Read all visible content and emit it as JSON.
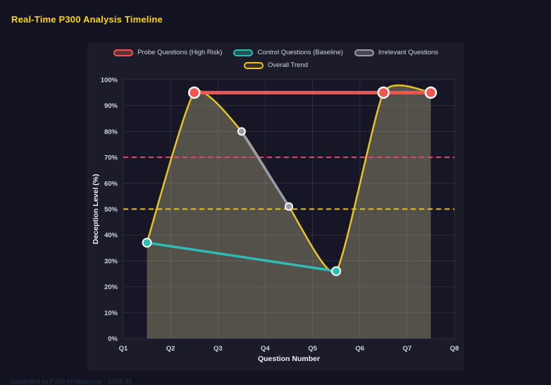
{
  "page": {
    "title": "Real-Time P300 Analysis Timeline",
    "footer": "Generated by P300 Professional - 10:05:45"
  },
  "theme": {
    "page_bg": "#121220",
    "panel_bg": "#1b1b2a",
    "plot_bg": "#161626",
    "grid": "rgba(255,255,255,0.09)",
    "tick_text": "#ced3de",
    "axis_title_text": "#eef0f5",
    "legend_text": "#d2d5dd",
    "title_text": "#ffd700",
    "footer_text": "#2e3444",
    "point_border": "#ffffff"
  },
  "chart_data": {
    "type": "line",
    "title": "Real-Time P300 Analysis Timeline",
    "xlabel": "Question Number",
    "ylabel": "Deception Level (%)",
    "x_ticks": [
      "Q1",
      "Q2",
      "Q3",
      "Q4",
      "Q5",
      "Q6",
      "Q7",
      "Q8"
    ],
    "x_range": [
      1,
      8
    ],
    "y_ticks": [
      "0%",
      "10%",
      "20%",
      "30%",
      "40%",
      "50%",
      "60%",
      "70%",
      "80%",
      "90%",
      "100%"
    ],
    "ylim": [
      0,
      100
    ],
    "y_tick_step": 10,
    "grid": true,
    "legend_position": "top",
    "series": [
      {
        "name": "Probe Questions (High Risk)",
        "color": "#f2554e",
        "swatch_fill": "rgba(242,85,78,0.35)",
        "line_width": 5,
        "point_radius": 7.5,
        "point_stroke": 2.5,
        "smooth": false,
        "fill": false,
        "points": [
          {
            "x": 2.5,
            "y": 95
          },
          {
            "x": 6.5,
            "y": 95
          },
          {
            "x": 7.5,
            "y": 95
          }
        ]
      },
      {
        "name": "Control Questions (Baseline)",
        "color": "#2fbdb3",
        "swatch_fill": "rgba(47,189,179,0.35)",
        "line_width": 3.5,
        "point_radius": 6,
        "point_stroke": 2,
        "smooth": false,
        "fill": false,
        "points": [
          {
            "x": 1.5,
            "y": 37
          },
          {
            "x": 5.5,
            "y": 26
          }
        ]
      },
      {
        "name": "Irrelevant Questions",
        "color": "#9c9ca6",
        "swatch_fill": "rgba(156,156,166,0.35)",
        "line_width": 3.5,
        "point_radius": 5,
        "point_stroke": 2,
        "smooth": false,
        "fill": false,
        "points": [
          {
            "x": 3.5,
            "y": 80
          },
          {
            "x": 4.5,
            "y": 51
          }
        ]
      },
      {
        "name": "Overall Trend",
        "color": "#e6c32a",
        "swatch_fill": "rgba(230,195,42,0.12)",
        "line_width": 2.5,
        "point_radius": 0,
        "point_stroke": 0,
        "smooth": true,
        "fill": true,
        "fill_color": "rgba(225,220,160,0.3)",
        "points": [
          {
            "x": 1.5,
            "y": 37
          },
          {
            "x": 2.5,
            "y": 95
          },
          {
            "x": 3.5,
            "y": 80
          },
          {
            "x": 4.5,
            "y": 51
          },
          {
            "x": 5.5,
            "y": 26
          },
          {
            "x": 6.5,
            "y": 95
          },
          {
            "x": 7.5,
            "y": 95
          }
        ]
      }
    ],
    "thresholds": [
      {
        "value": 70,
        "color": "#ef4468",
        "style": "dashed"
      },
      {
        "value": 50,
        "color": "#e6c32a",
        "style": "dashed"
      }
    ]
  }
}
